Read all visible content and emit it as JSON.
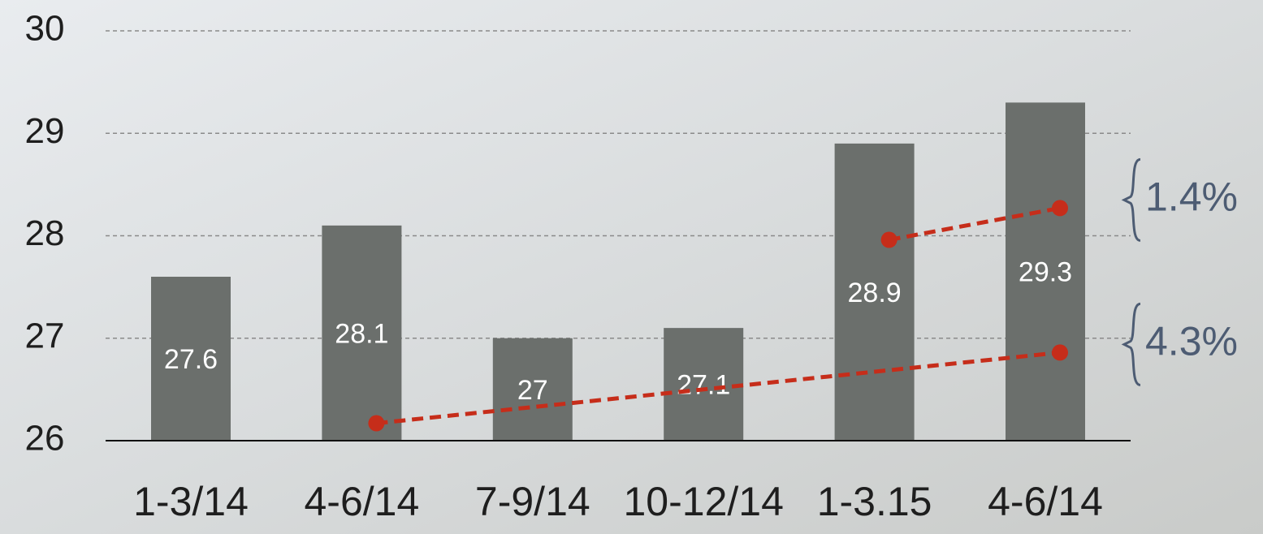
{
  "chart_data": {
    "type": "bar",
    "categories": [
      "1-3/14",
      "4-6/14",
      "7-9/14",
      "10-12/14",
      "1-3.15",
      "4-6/14"
    ],
    "values": [
      27.6,
      28.1,
      27,
      27.1,
      28.9,
      29.3
    ],
    "color": "#6b6f6c",
    "ylim": [
      26,
      30
    ],
    "yticks": [
      26,
      27,
      28,
      29,
      30
    ],
    "grid": true,
    "trend_lines": [
      {
        "x": [
          1,
          5
        ],
        "values": [
          26.17,
          26.86
        ],
        "label": "4.3%",
        "color": "#c62d1a"
      },
      {
        "x": [
          4,
          5
        ],
        "values": [
          27.96,
          28.27
        ],
        "label": "1.4%",
        "color": "#c62d1a"
      }
    ]
  }
}
